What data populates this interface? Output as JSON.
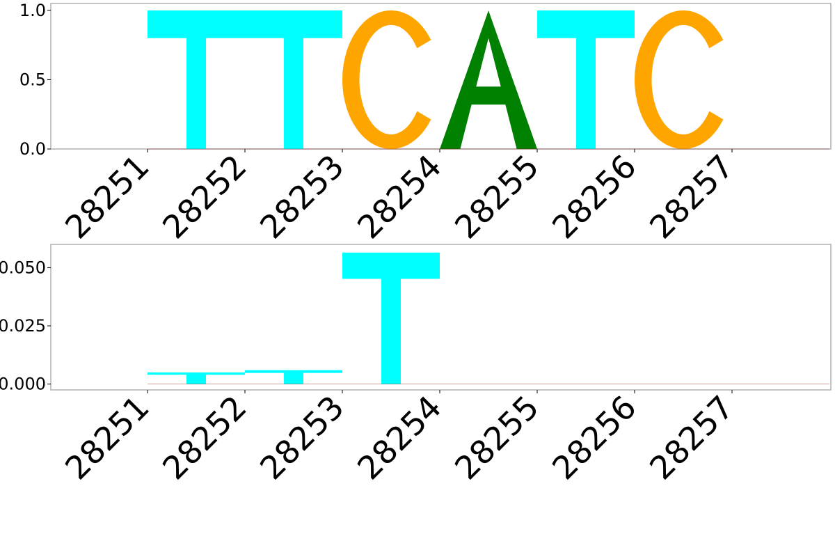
{
  "chart_data": [
    {
      "type": "sequence-logo",
      "positions": [
        "28251",
        "28252",
        "28253",
        "28254",
        "28255",
        "28256",
        "28257"
      ],
      "yticks": [
        "0.0",
        "0.5",
        "1.0"
      ],
      "ylim": [
        0,
        1.05
      ],
      "letters": [
        {
          "position": "28251",
          "letter": "T",
          "value": 1.0,
          "color": "#00ffff"
        },
        {
          "position": "28252",
          "letter": "T",
          "value": 1.0,
          "color": "#00ffff"
        },
        {
          "position": "28253",
          "letter": "C",
          "value": 1.0,
          "color": "#ffa500"
        },
        {
          "position": "28254",
          "letter": "A",
          "value": 1.0,
          "color": "#008000"
        },
        {
          "position": "28255",
          "letter": "T",
          "value": 1.0,
          "color": "#00ffff"
        },
        {
          "position": "28256",
          "letter": "C",
          "value": 1.0,
          "color": "#ffa500"
        }
      ],
      "grid": false,
      "legend": "none"
    },
    {
      "type": "sequence-logo",
      "positions": [
        "28251",
        "28252",
        "28253",
        "28254",
        "28255",
        "28256",
        "28257"
      ],
      "yticks": [
        "0.000",
        "0.025",
        "0.050"
      ],
      "ylim": [
        -0.0025,
        0.06
      ],
      "letters": [
        {
          "position": "28251",
          "letter": "T",
          "value": 0.005,
          "color": "#00ffff"
        },
        {
          "position": "28252",
          "letter": "T",
          "value": 0.006,
          "color": "#00ffff"
        },
        {
          "position": "28253",
          "letter": "T",
          "value": 0.0565,
          "color": "#00ffff"
        }
      ],
      "grid": false,
      "legend": "none"
    }
  ]
}
